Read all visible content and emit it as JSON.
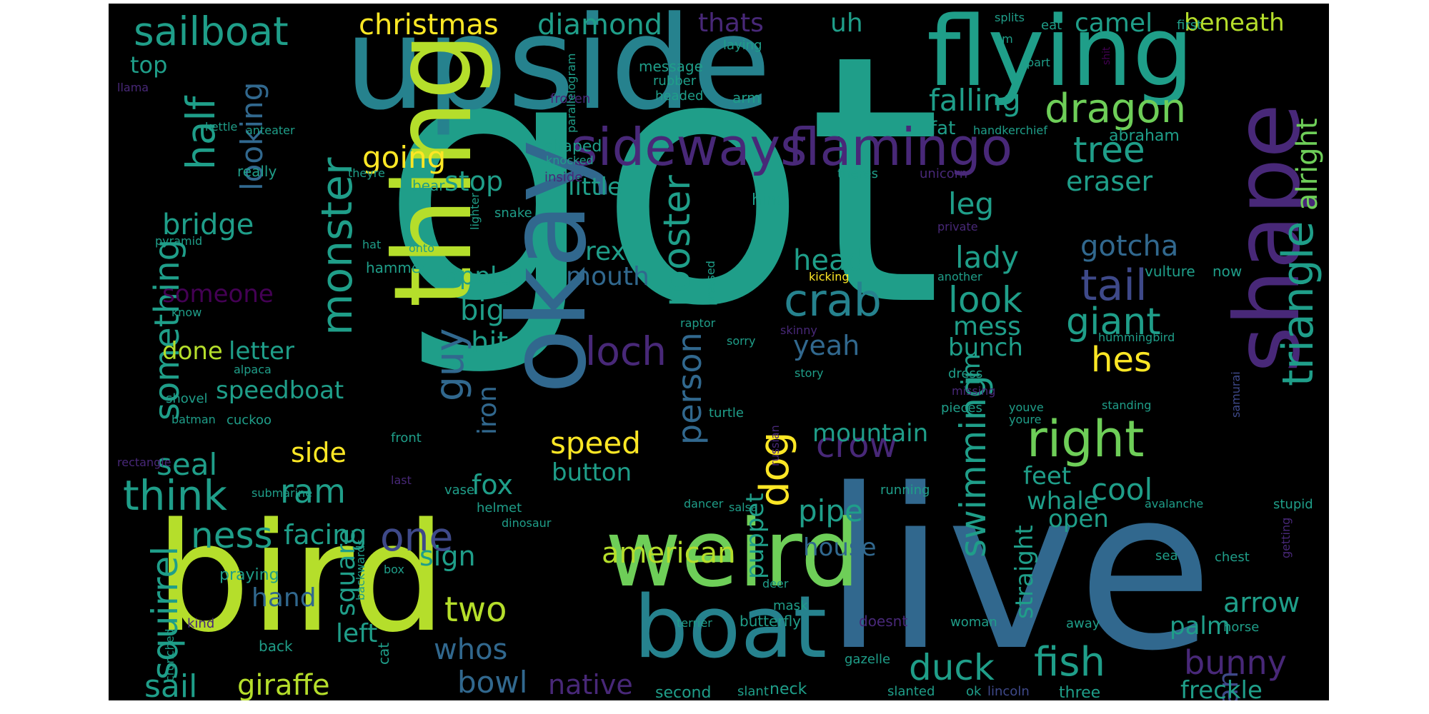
{
  "palette": {
    "canvas": "#000000",
    "page": "#ffffff",
    "yellow": "#fde725",
    "lime": "#b5de2b",
    "lightgreen": "#6ece58",
    "green": "#35b779",
    "teal": "#1f9e89",
    "blueteal": "#26828e",
    "blue": "#31688e",
    "indigo": "#3e4989",
    "violet": "#482878",
    "darkviolet": "#440154"
  },
  "words": [
    {
      "text": "got",
      "color": "teal"
    },
    {
      "text": "upside",
      "color": "blueteal"
    },
    {
      "text": "live",
      "color": "blue"
    },
    {
      "text": "bird",
      "color": "lime"
    },
    {
      "text": "thing",
      "color": "lime"
    },
    {
      "text": "flying",
      "color": "teal"
    },
    {
      "text": "okay",
      "color": "blue"
    },
    {
      "text": "shape",
      "color": "violet"
    },
    {
      "text": "weird",
      "color": "lightgreen"
    },
    {
      "text": "boat",
      "color": "blueteal"
    },
    {
      "text": "sideways",
      "color": "violet"
    },
    {
      "text": "flamingo",
      "color": "violet"
    },
    {
      "text": "sailboat",
      "color": "teal"
    },
    {
      "text": "crab",
      "color": "blueteal"
    },
    {
      "text": "right",
      "color": "lightgreen"
    },
    {
      "text": "christmas",
      "color": "yellow"
    },
    {
      "text": "diamond",
      "color": "teal"
    },
    {
      "text": "camel",
      "color": "teal"
    },
    {
      "text": "beneath",
      "color": "lime"
    },
    {
      "text": "thats",
      "color": "violet"
    },
    {
      "text": "uh",
      "color": "teal"
    },
    {
      "text": "dragon",
      "color": "lightgreen"
    },
    {
      "text": "falling",
      "color": "teal"
    },
    {
      "text": "tree",
      "color": "teal"
    },
    {
      "text": "eraser",
      "color": "teal"
    },
    {
      "text": "going",
      "color": "yellow"
    },
    {
      "text": "stop",
      "color": "teal"
    },
    {
      "text": "little",
      "color": "teal"
    },
    {
      "text": "half",
      "color": "teal"
    },
    {
      "text": "looking",
      "color": "blue"
    },
    {
      "text": "top",
      "color": "teal"
    },
    {
      "text": "something",
      "color": "teal"
    },
    {
      "text": "bridge",
      "color": "teal"
    },
    {
      "text": "monster",
      "color": "teal"
    },
    {
      "text": "someone",
      "color": "darkviolet"
    },
    {
      "text": "leg",
      "color": "teal"
    },
    {
      "text": "gotcha",
      "color": "blue"
    },
    {
      "text": "lady",
      "color": "teal"
    },
    {
      "text": "tail",
      "color": "indigo"
    },
    {
      "text": "look",
      "color": "teal"
    },
    {
      "text": "mess",
      "color": "teal"
    },
    {
      "text": "giant",
      "color": "teal"
    },
    {
      "text": "hes",
      "color": "yellow"
    },
    {
      "text": "triangle",
      "color": "teal"
    },
    {
      "text": "alright",
      "color": "lightgreen"
    },
    {
      "text": "rooster",
      "color": "teal"
    },
    {
      "text": "rex",
      "color": "teal"
    },
    {
      "text": "mouth",
      "color": "blue"
    },
    {
      "text": "apple",
      "color": "teal"
    },
    {
      "text": "big",
      "color": "teal"
    },
    {
      "text": "hit",
      "color": "teal"
    },
    {
      "text": "loch",
      "color": "violet"
    },
    {
      "text": "head",
      "color": "teal"
    },
    {
      "text": "yeah",
      "color": "blue"
    },
    {
      "text": "bunch",
      "color": "teal"
    },
    {
      "text": "im",
      "color": "teal"
    },
    {
      "text": "guy",
      "color": "blue"
    },
    {
      "text": "iron",
      "color": "blue"
    },
    {
      "text": "done",
      "color": "lime"
    },
    {
      "text": "letter",
      "color": "teal"
    },
    {
      "text": "person",
      "color": "blue"
    },
    {
      "text": "speed",
      "color": "yellow"
    },
    {
      "text": "button",
      "color": "teal"
    },
    {
      "text": "crow",
      "color": "violet"
    },
    {
      "text": "dog",
      "color": "yellow"
    },
    {
      "text": "swimming",
      "color": "teal"
    },
    {
      "text": "mountain",
      "color": "teal"
    },
    {
      "text": "seal",
      "color": "teal"
    },
    {
      "text": "side",
      "color": "yellow"
    },
    {
      "text": "ram",
      "color": "teal"
    },
    {
      "text": "think",
      "color": "teal"
    },
    {
      "text": "facing",
      "color": "teal"
    },
    {
      "text": "speedboat",
      "color": "teal"
    },
    {
      "text": "fox",
      "color": "teal"
    },
    {
      "text": "puppet",
      "color": "teal"
    },
    {
      "text": "pipe",
      "color": "teal"
    },
    {
      "text": "cool",
      "color": "teal"
    },
    {
      "text": "whale",
      "color": "teal"
    },
    {
      "text": "feet",
      "color": "teal"
    },
    {
      "text": "open",
      "color": "teal"
    },
    {
      "text": "one",
      "color": "indigo"
    },
    {
      "text": "ness",
      "color": "teal"
    },
    {
      "text": "squirrel",
      "color": "teal"
    },
    {
      "text": "square",
      "color": "teal"
    },
    {
      "text": "sign",
      "color": "teal"
    },
    {
      "text": "american",
      "color": "lime"
    },
    {
      "text": "house",
      "color": "blue"
    },
    {
      "text": "straight",
      "color": "teal"
    },
    {
      "text": "arrow",
      "color": "teal"
    },
    {
      "text": "palm",
      "color": "teal"
    },
    {
      "text": "two",
      "color": "lime"
    },
    {
      "text": "hand",
      "color": "blue"
    },
    {
      "text": "left",
      "color": "teal"
    },
    {
      "text": "whos",
      "color": "blue"
    },
    {
      "text": "duck",
      "color": "teal"
    },
    {
      "text": "fish",
      "color": "teal"
    },
    {
      "text": "bunny",
      "color": "violet"
    },
    {
      "text": "swan",
      "color": "indigo"
    },
    {
      "text": "freckle",
      "color": "teal"
    },
    {
      "text": "sail",
      "color": "teal"
    },
    {
      "text": "giraffe",
      "color": "lime"
    },
    {
      "text": "bowl",
      "color": "blue"
    },
    {
      "text": "native",
      "color": "violet"
    },
    {
      "text": "neck",
      "color": "teal"
    },
    {
      "text": "second",
      "color": "teal"
    },
    {
      "text": "slanted",
      "color": "teal"
    },
    {
      "text": "ok",
      "color": "teal"
    },
    {
      "text": "lincoln",
      "color": "indigo"
    },
    {
      "text": "three",
      "color": "teal"
    },
    {
      "text": "fat",
      "color": "teal"
    },
    {
      "text": "handkerchief",
      "color": "teal"
    },
    {
      "text": "abraham",
      "color": "teal"
    },
    {
      "text": "splits",
      "color": "teal"
    },
    {
      "text": "um",
      "color": "teal"
    },
    {
      "text": "eat",
      "color": "teal"
    },
    {
      "text": "first",
      "color": "teal"
    },
    {
      "text": "part",
      "color": "teal"
    },
    {
      "text": "shit",
      "color": "darkviolet"
    },
    {
      "text": "laying",
      "color": "teal"
    },
    {
      "text": "message",
      "color": "teal"
    },
    {
      "text": "rubber",
      "color": "teal"
    },
    {
      "text": "headed",
      "color": "teal"
    },
    {
      "text": "arm",
      "color": "teal"
    },
    {
      "text": "frozen",
      "color": "violet"
    },
    {
      "text": "parallelogram",
      "color": "teal"
    },
    {
      "text": "llama",
      "color": "violet"
    },
    {
      "text": "kettle",
      "color": "teal"
    },
    {
      "text": "anteater",
      "color": "teal"
    },
    {
      "text": "shaped",
      "color": "teal"
    },
    {
      "text": "knocked",
      "color": "teal"
    },
    {
      "text": "inside",
      "color": "violet"
    },
    {
      "text": "really",
      "color": "teal"
    },
    {
      "text": "theyre",
      "color": "teal"
    },
    {
      "text": "bear",
      "color": "teal"
    },
    {
      "text": "lighter",
      "color": "teal"
    },
    {
      "text": "snake",
      "color": "teal"
    },
    {
      "text": "hind",
      "color": "teal"
    },
    {
      "text": "theres",
      "color": "teal"
    },
    {
      "text": "unicorn",
      "color": "violet"
    },
    {
      "text": "private",
      "color": "violet"
    },
    {
      "text": "pyramid",
      "color": "teal"
    },
    {
      "text": "hat",
      "color": "teal"
    },
    {
      "text": "onto",
      "color": "teal"
    },
    {
      "text": "hammer",
      "color": "teal"
    },
    {
      "text": "pressed",
      "color": "teal"
    },
    {
      "text": "kicking",
      "color": "yellow"
    },
    {
      "text": "another",
      "color": "teal"
    },
    {
      "text": "vulture",
      "color": "teal"
    },
    {
      "text": "now",
      "color": "teal"
    },
    {
      "text": "know",
      "color": "teal"
    },
    {
      "text": "raptor",
      "color": "teal"
    },
    {
      "text": "skinny",
      "color": "violet"
    },
    {
      "text": "sorry",
      "color": "teal"
    },
    {
      "text": "hummingbird",
      "color": "teal"
    },
    {
      "text": "alpaca",
      "color": "teal"
    },
    {
      "text": "story",
      "color": "teal"
    },
    {
      "text": "dress",
      "color": "teal"
    },
    {
      "text": "missing",
      "color": "violet"
    },
    {
      "text": "shovel",
      "color": "teal"
    },
    {
      "text": "pieces",
      "color": "teal"
    },
    {
      "text": "youve",
      "color": "teal"
    },
    {
      "text": "standing",
      "color": "teal"
    },
    {
      "text": "samurai",
      "color": "indigo"
    },
    {
      "text": "batman",
      "color": "teal"
    },
    {
      "text": "cuckoo",
      "color": "teal"
    },
    {
      "text": "turtle",
      "color": "teal"
    },
    {
      "text": "youre",
      "color": "teal"
    },
    {
      "text": "russian",
      "color": "violet"
    },
    {
      "text": "rectangle",
      "color": "violet"
    },
    {
      "text": "front",
      "color": "teal"
    },
    {
      "text": "last",
      "color": "violet"
    },
    {
      "text": "vase",
      "color": "teal"
    },
    {
      "text": "running",
      "color": "teal"
    },
    {
      "text": "submarine",
      "color": "teal"
    },
    {
      "text": "helmet",
      "color": "teal"
    },
    {
      "text": "dancer",
      "color": "teal"
    },
    {
      "text": "salsa",
      "color": "teal"
    },
    {
      "text": "avalanche",
      "color": "teal"
    },
    {
      "text": "stupid",
      "color": "teal"
    },
    {
      "text": "dinosaur",
      "color": "teal"
    },
    {
      "text": "getting",
      "color": "violet"
    },
    {
      "text": "praying",
      "color": "teal"
    },
    {
      "text": "box",
      "color": "teal"
    },
    {
      "text": "backwards",
      "color": "teal"
    },
    {
      "text": "deer",
      "color": "teal"
    },
    {
      "text": "sea",
      "color": "teal"
    },
    {
      "text": "chest",
      "color": "teal"
    },
    {
      "text": "mask",
      "color": "teal"
    },
    {
      "text": "kind",
      "color": "violet"
    },
    {
      "text": "terrier",
      "color": "teal"
    },
    {
      "text": "butterfly",
      "color": "teal"
    },
    {
      "text": "doesnt",
      "color": "violet"
    },
    {
      "text": "woman",
      "color": "teal"
    },
    {
      "text": "away",
      "color": "teal"
    },
    {
      "text": "horse",
      "color": "teal"
    },
    {
      "text": "crunched",
      "color": "teal"
    },
    {
      "text": "back",
      "color": "teal"
    },
    {
      "text": "cat",
      "color": "teal"
    },
    {
      "text": "gazelle",
      "color": "teal"
    },
    {
      "text": "slant",
      "color": "teal"
    }
  ]
}
